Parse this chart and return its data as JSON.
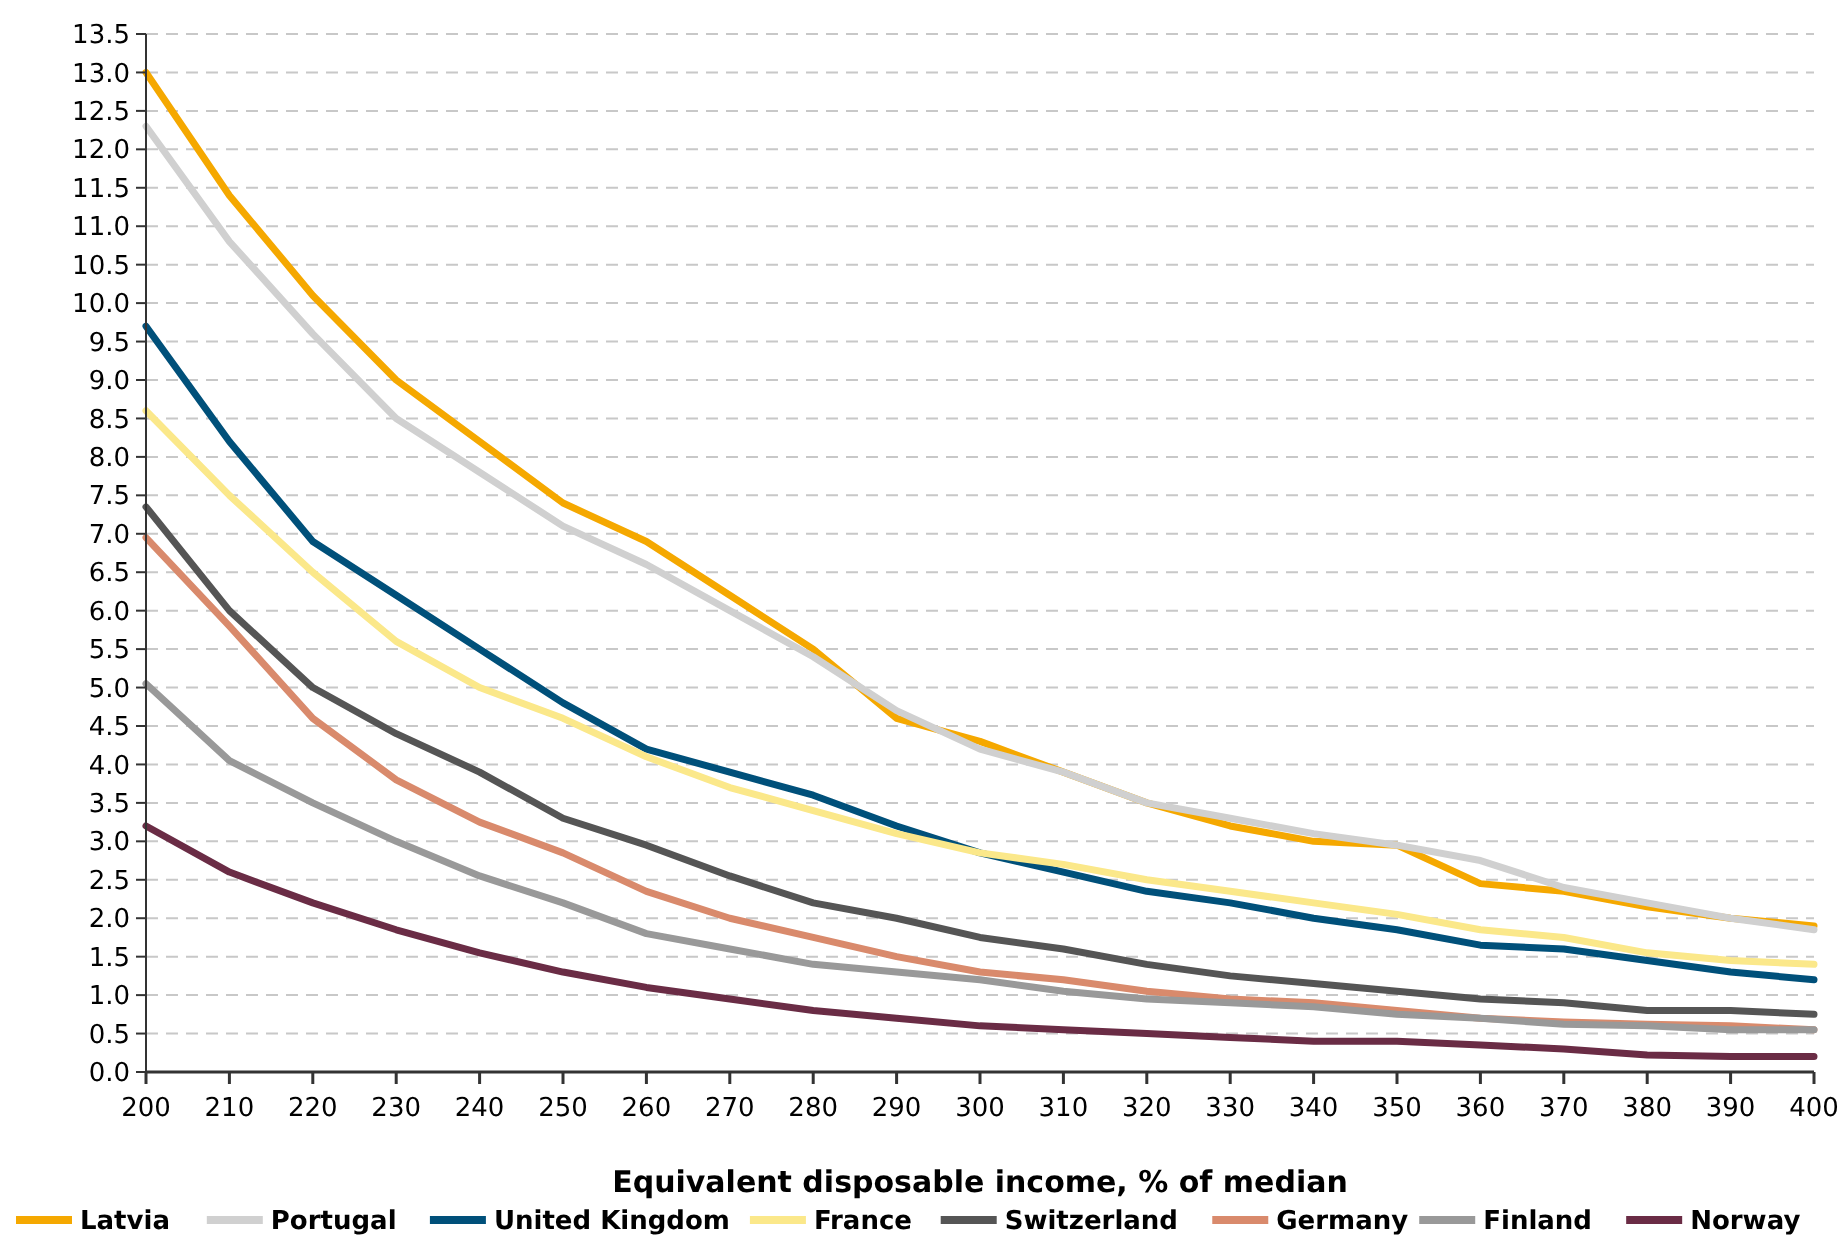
{
  "chart_data": {
    "type": "line",
    "xlabel": "Equivalent disposable income, % of median",
    "x": [
      200,
      210,
      220,
      230,
      240,
      250,
      260,
      270,
      280,
      290,
      300,
      310,
      320,
      330,
      340,
      350,
      360,
      370,
      380,
      390,
      400
    ],
    "xlim": [
      200,
      400
    ],
    "xticks": [
      200,
      210,
      220,
      230,
      240,
      250,
      260,
      270,
      280,
      290,
      300,
      310,
      320,
      330,
      340,
      350,
      360,
      370,
      380,
      390,
      400
    ],
    "ylim": [
      0,
      13.5
    ],
    "yticks": [
      {
        "value": 0,
        "label": "0.0"
      },
      {
        "value": 0.5,
        "label": "0.5"
      },
      {
        "value": 1,
        "label": "1.0"
      },
      {
        "value": 1.5,
        "label": "1.5"
      },
      {
        "value": 2,
        "label": "2.0"
      },
      {
        "value": 2.5,
        "label": "2.5"
      },
      {
        "value": 3,
        "label": "3.0"
      },
      {
        "value": 3.5,
        "label": "3.5"
      },
      {
        "value": 4,
        "label": "4.0"
      },
      {
        "value": 4.5,
        "label": "4.5"
      },
      {
        "value": 5,
        "label": "5.0"
      },
      {
        "value": 5.5,
        "label": "5.5"
      },
      {
        "value": 6,
        "label": "6.0"
      },
      {
        "value": 6.5,
        "label": "6.5"
      },
      {
        "value": 7,
        "label": "7.0"
      },
      {
        "value": 7.5,
        "label": "7.5"
      },
      {
        "value": 8,
        "label": "8.0"
      },
      {
        "value": 8.5,
        "label": "8.5"
      },
      {
        "value": 9,
        "label": "9.0"
      },
      {
        "value": 9.5,
        "label": "9.5"
      },
      {
        "value": 10,
        "label": "10.0"
      },
      {
        "value": 10.5,
        "label": "10.5"
      },
      {
        "value": 11,
        "label": "11.0"
      },
      {
        "value": 11.5,
        "label": "11.5"
      },
      {
        "value": 12,
        "label": "12.0"
      },
      {
        "value": 12.5,
        "label": "12.5"
      },
      {
        "value": 13,
        "label": "13.0"
      },
      {
        "value": 13.5,
        "label": "13.5"
      }
    ],
    "grid": "y",
    "legend": "bottom",
    "marker": "none",
    "line_style": "solid",
    "series": [
      {
        "name": "Latvia",
        "color": "#f5a800",
        "values": [
          13.0,
          11.4,
          10.1,
          9.0,
          8.2,
          7.4,
          6.9,
          6.2,
          5.5,
          4.6,
          4.3,
          3.9,
          3.5,
          3.2,
          3.0,
          2.95,
          2.45,
          2.35,
          2.15,
          2.0,
          1.9
        ]
      },
      {
        "name": "Portugal",
        "color": "#d0d0d0",
        "values": [
          12.3,
          10.8,
          9.6,
          8.5,
          7.8,
          7.1,
          6.6,
          6.0,
          5.4,
          4.7,
          4.2,
          3.9,
          3.5,
          3.3,
          3.1,
          2.95,
          2.75,
          2.4,
          2.2,
          2.0,
          1.85
        ]
      },
      {
        "name": "United Kingdom",
        "color": "#00507a",
        "values": [
          9.7,
          8.2,
          6.9,
          6.2,
          5.5,
          4.8,
          4.2,
          3.9,
          3.6,
          3.2,
          2.85,
          2.6,
          2.35,
          2.2,
          2.0,
          1.85,
          1.65,
          1.6,
          1.45,
          1.3,
          1.2
        ]
      },
      {
        "name": "France",
        "color": "#fbe88a",
        "values": [
          8.6,
          7.5,
          6.5,
          5.6,
          5.0,
          4.6,
          4.1,
          3.7,
          3.4,
          3.1,
          2.85,
          2.7,
          2.5,
          2.35,
          2.2,
          2.05,
          1.85,
          1.75,
          1.55,
          1.45,
          1.4
        ]
      },
      {
        "name": "Switzerland",
        "color": "#555555",
        "values": [
          7.35,
          6.0,
          5.0,
          4.4,
          3.9,
          3.3,
          2.95,
          2.55,
          2.2,
          2.0,
          1.75,
          1.6,
          1.4,
          1.25,
          1.15,
          1.05,
          0.95,
          0.9,
          0.8,
          0.8,
          0.75
        ]
      },
      {
        "name": "Germany",
        "color": "#d98a6c",
        "values": [
          6.95,
          5.8,
          4.6,
          3.8,
          3.25,
          2.85,
          2.35,
          2.0,
          1.75,
          1.5,
          1.3,
          1.2,
          1.05,
          0.95,
          0.9,
          0.8,
          0.7,
          0.65,
          0.62,
          0.6,
          0.55
        ]
      },
      {
        "name": "Finland",
        "color": "#999999",
        "values": [
          5.05,
          4.05,
          3.5,
          3.0,
          2.55,
          2.2,
          1.8,
          1.6,
          1.4,
          1.3,
          1.2,
          1.05,
          0.95,
          0.9,
          0.85,
          0.75,
          0.7,
          0.62,
          0.6,
          0.55,
          0.55
        ]
      },
      {
        "name": "Norway",
        "color": "#6a2c45",
        "values": [
          3.2,
          2.6,
          2.2,
          1.85,
          1.55,
          1.3,
          1.1,
          0.95,
          0.8,
          0.7,
          0.6,
          0.55,
          0.5,
          0.45,
          0.4,
          0.4,
          0.35,
          0.3,
          0.22,
          0.2,
          0.2
        ]
      }
    ]
  }
}
